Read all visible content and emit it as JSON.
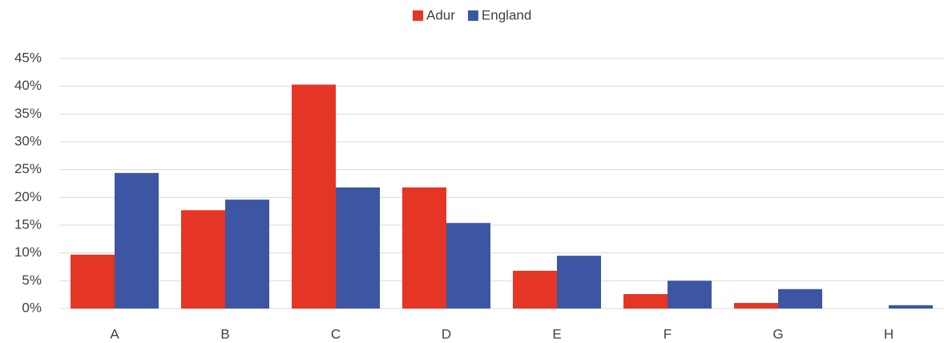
{
  "chart_data": {
    "type": "bar",
    "categories": [
      "A",
      "B",
      "C",
      "D",
      "E",
      "F",
      "G",
      "H"
    ],
    "series": [
      {
        "name": "Adur",
        "color": "#e53524",
        "values": [
          9.7,
          17.7,
          40.3,
          21.8,
          6.8,
          2.6,
          1.0,
          0
        ]
      },
      {
        "name": "England",
        "color": "#3c56a4",
        "values": [
          24.4,
          19.6,
          21.8,
          15.4,
          9.5,
          5.0,
          3.5,
          0.6
        ]
      }
    ],
    "ylim": [
      0,
      45
    ],
    "yticks": [
      {
        "value": 0,
        "label": "0%"
      },
      {
        "value": 5,
        "label": "5%"
      },
      {
        "value": 10,
        "label": "10%"
      },
      {
        "value": 15,
        "label": "15%"
      },
      {
        "value": 20,
        "label": "20%"
      },
      {
        "value": 25,
        "label": "25%"
      },
      {
        "value": 30,
        "label": "30%"
      },
      {
        "value": 35,
        "label": "35%"
      },
      {
        "value": 40,
        "label": "40%"
      },
      {
        "value": 45,
        "label": "45%"
      }
    ],
    "grid": true,
    "legend": "top"
  }
}
